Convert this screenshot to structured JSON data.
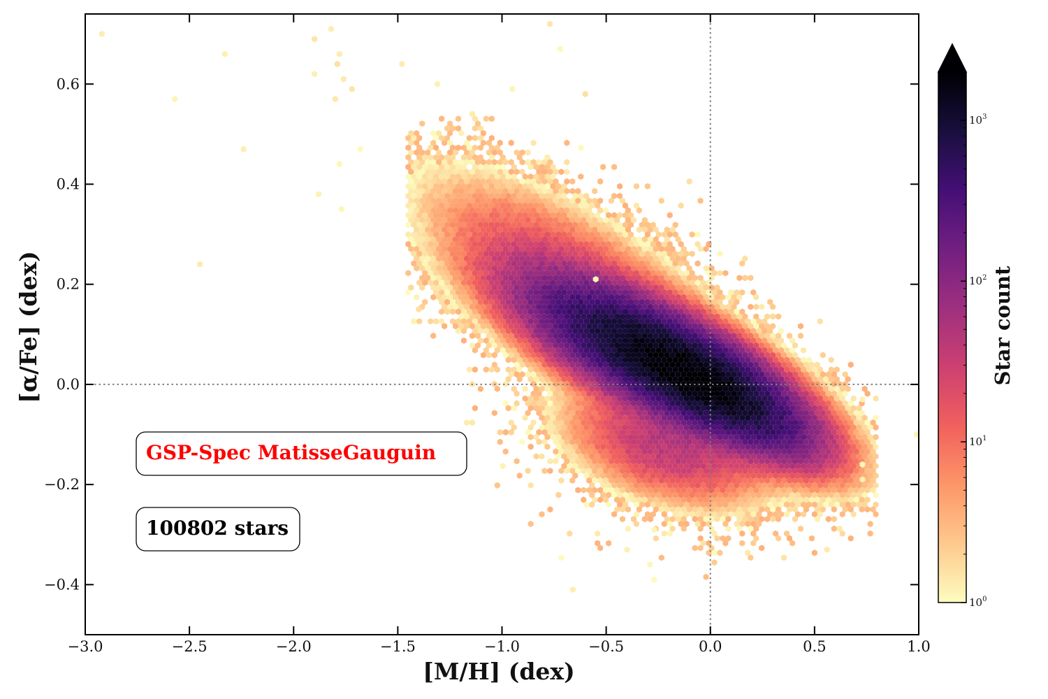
{
  "chart_data": {
    "type": "heatmap",
    "subtype": "hexbin-density",
    "title": "",
    "xlabel": "[M/H] (dex)",
    "ylabel": "[α/Fe] (dex)",
    "xlim": [
      -3.0,
      1.0
    ],
    "ylim": [
      -0.5,
      0.74
    ],
    "x_ticks": [
      -3.0,
      -2.5,
      -2.0,
      -1.5,
      -1.0,
      -0.5,
      0.0,
      0.5,
      1.0
    ],
    "x_tick_labels": [
      "−3.0",
      "−2.5",
      "−2.0",
      "−1.5",
      "−1.0",
      "−0.5",
      "0.0",
      "0.5",
      "1.0"
    ],
    "y_ticks": [
      -0.4,
      -0.2,
      0.0,
      0.2,
      0.4,
      0.6
    ],
    "y_tick_labels": [
      "−0.4",
      "−0.2",
      "0.0",
      "0.2",
      "0.4",
      "0.6"
    ],
    "reference_lines": [
      {
        "orientation": "vertical",
        "value": 0.0,
        "style": "dotted",
        "color": "#808080"
      },
      {
        "orientation": "horizontal",
        "value": 0.0,
        "style": "dotted",
        "color": "#808080"
      }
    ],
    "density_components": [
      {
        "center": [
          -0.25,
          0.05
        ],
        "sigma_along": 0.28,
        "sigma_across": 0.045,
        "slope": -0.2,
        "peak": 1300
      },
      {
        "center": [
          0.0,
          0.0
        ],
        "sigma_along": 0.22,
        "sigma_across": 0.04,
        "slope": -0.22,
        "peak": 1100
      },
      {
        "center": [
          -0.55,
          0.15
        ],
        "sigma_along": 0.35,
        "sigma_across": 0.07,
        "slope": -0.25,
        "peak": 40
      },
      {
        "center": [
          -0.2,
          -0.12
        ],
        "sigma_along": 0.22,
        "sigma_across": 0.05,
        "slope": -0.1,
        "peak": 40
      }
    ],
    "outliers": [
      [
        -2.92,
        0.7
      ],
      [
        -2.57,
        0.57
      ],
      [
        -2.45,
        0.24
      ],
      [
        -2.33,
        0.66
      ],
      [
        -2.24,
        0.47
      ],
      [
        -1.9,
        0.69
      ],
      [
        -1.82,
        0.71
      ],
      [
        -1.9,
        0.62
      ],
      [
        -1.88,
        0.38
      ],
      [
        -1.78,
        0.66
      ],
      [
        -1.79,
        0.64
      ],
      [
        -1.76,
        0.61
      ],
      [
        -1.8,
        0.57
      ],
      [
        -1.72,
        0.59
      ],
      [
        -1.78,
        0.44
      ],
      [
        -1.77,
        0.35
      ],
      [
        -1.68,
        0.47
      ],
      [
        -1.48,
        0.64
      ],
      [
        -1.31,
        0.6
      ],
      [
        -0.77,
        0.72
      ],
      [
        -0.72,
        0.67
      ],
      [
        -0.6,
        0.58
      ],
      [
        -0.95,
        0.59
      ],
      [
        -0.55,
        0.21
      ],
      [
        0.56,
        -0.33
      ],
      [
        0.73,
        -0.16
      ],
      [
        0.73,
        -0.19
      ],
      [
        0.73,
        -0.03
      ],
      [
        0.99,
        -0.1
      ],
      [
        -0.66,
        -0.41
      ],
      [
        -0.4,
        -0.33
      ],
      [
        -0.29,
        -0.36
      ],
      [
        -0.27,
        -0.39
      ],
      [
        -0.27,
        -0.29
      ],
      [
        -1.4,
        0.15
      ]
    ],
    "colorbar": {
      "label": "Star count",
      "scale": "log",
      "range": [
        1,
        2000
      ],
      "ticks": [
        1,
        10,
        100,
        1000
      ],
      "tick_labels": [
        "10",
        "10",
        "10",
        "10"
      ],
      "tick_exponents": [
        "0",
        "1",
        "2",
        "3"
      ],
      "extend": "max",
      "colormap": "magma_r",
      "colors": [
        "#fcfdbf",
        "#fec98d",
        "#fd9668",
        "#f1605d",
        "#cd4071",
        "#9e2f7f",
        "#721f81",
        "#440f76",
        "#180f3d",
        "#000004"
      ]
    },
    "annotations": [
      {
        "text": "GSP-Spec MatisseGauguin",
        "color": "#ff0000"
      },
      {
        "text": "100802 stars",
        "color": "#000000"
      }
    ]
  }
}
